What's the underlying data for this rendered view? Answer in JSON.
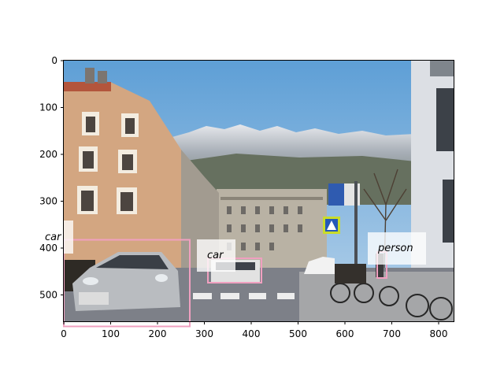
{
  "axes": {
    "x_ticks": [
      "0",
      "100",
      "200",
      "300",
      "400",
      "500",
      "600",
      "700",
      "800"
    ],
    "y_ticks": [
      "0",
      "100",
      "200",
      "300",
      "400",
      "500"
    ]
  },
  "detections": [
    {
      "label": "car"
    },
    {
      "label": "car"
    },
    {
      "label": "person"
    }
  ],
  "colors": {
    "box": "#f0a0c0",
    "label_bg": "#ffffff"
  }
}
